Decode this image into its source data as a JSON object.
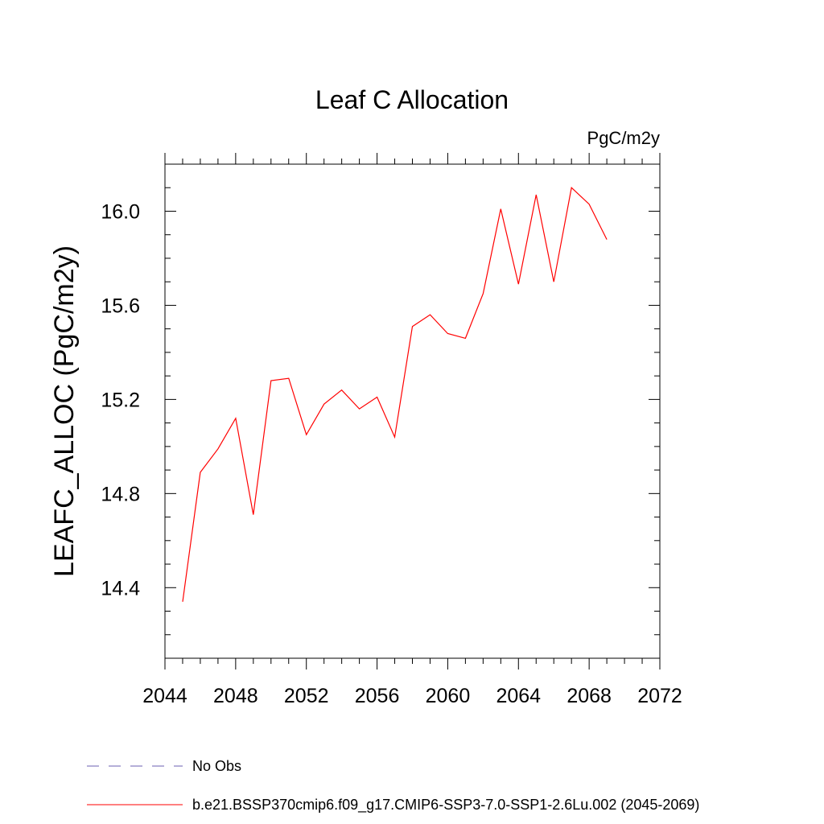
{
  "chart_data": {
    "type": "line",
    "title": "Leaf C Allocation",
    "units_label": "PgC/m2y",
    "xlabel": "",
    "ylabel": "LEAFC_ALLOC  (PgC/m2y)",
    "xlim": [
      2044,
      2072
    ],
    "ylim": [
      14.1,
      16.2
    ],
    "x_ticks": [
      2044,
      2048,
      2052,
      2056,
      2060,
      2064,
      2068,
      2072
    ],
    "x_tick_labels": [
      "2044",
      "2048",
      "2052",
      "2056",
      "2060",
      "2064",
      "2068",
      "2072"
    ],
    "y_ticks": [
      14.4,
      14.8,
      15.2,
      15.6,
      16.0
    ],
    "y_tick_labels": [
      "14.4",
      "14.8",
      "15.2",
      "15.6",
      "16.0"
    ],
    "grid": false,
    "legend_position": "bottom-left",
    "series": [
      {
        "name": "No Obs",
        "color": "#6b5fb3",
        "style": "dashed",
        "x": [],
        "values": []
      },
      {
        "name": "b.e21.BSSP370cmip6.f09_g17.CMIP6-SSP3-7.0-SSP1-2.6Lu.002 (2045-2069)",
        "color": "#ff0000",
        "style": "solid",
        "x": [
          2045,
          2046,
          2047,
          2048,
          2049,
          2050,
          2051,
          2052,
          2053,
          2054,
          2055,
          2056,
          2057,
          2058,
          2059,
          2060,
          2061,
          2062,
          2063,
          2064,
          2065,
          2066,
          2067,
          2068,
          2069
        ],
        "values": [
          14.34,
          14.89,
          14.99,
          15.12,
          14.71,
          15.28,
          15.29,
          15.05,
          15.18,
          15.24,
          15.16,
          15.21,
          15.04,
          15.51,
          15.56,
          15.48,
          15.46,
          15.65,
          16.01,
          15.69,
          16.07,
          15.7,
          16.1,
          16.03,
          15.88
        ]
      }
    ]
  }
}
